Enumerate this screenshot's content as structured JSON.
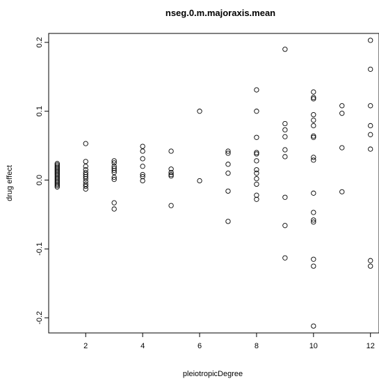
{
  "chart_data": {
    "type": "scatter",
    "title": "nseg.0.m.majoraxis.mean",
    "xlabel": "pleiotropicDegree",
    "ylabel": "drug effect",
    "xlim": [
      0.7,
      12.3
    ],
    "ylim": [
      -0.222,
      0.213
    ],
    "xticks": [
      2,
      4,
      6,
      8,
      10,
      12
    ],
    "yticks": [
      -0.2,
      -0.1,
      0.0,
      0.1,
      0.2
    ],
    "xtick_labels": [
      "2",
      "4",
      "6",
      "8",
      "10",
      "12"
    ],
    "ytick_labels": [
      "-0.2",
      "-0.1",
      "0.0",
      "0.1",
      "0.2"
    ],
    "grid": false,
    "marker": "open-circle",
    "points": [
      {
        "x": 1,
        "y": 0.024
      },
      {
        "x": 1,
        "y": 0.022
      },
      {
        "x": 1,
        "y": 0.02
      },
      {
        "x": 1,
        "y": 0.018
      },
      {
        "x": 1,
        "y": 0.016
      },
      {
        "x": 1,
        "y": 0.014
      },
      {
        "x": 1,
        "y": 0.012
      },
      {
        "x": 1,
        "y": 0.01
      },
      {
        "x": 1,
        "y": 0.008
      },
      {
        "x": 1,
        "y": 0.006
      },
      {
        "x": 1,
        "y": 0.004
      },
      {
        "x": 1,
        "y": 0.002
      },
      {
        "x": 1,
        "y": 0.0
      },
      {
        "x": 1,
        "y": -0.002
      },
      {
        "x": 1,
        "y": -0.004
      },
      {
        "x": 1,
        "y": -0.006
      },
      {
        "x": 1,
        "y": -0.008
      },
      {
        "x": 1,
        "y": -0.01
      },
      {
        "x": 2,
        "y": 0.053
      },
      {
        "x": 2,
        "y": 0.027
      },
      {
        "x": 2,
        "y": 0.02
      },
      {
        "x": 2,
        "y": 0.015
      },
      {
        "x": 2,
        "y": 0.011
      },
      {
        "x": 2,
        "y": 0.008
      },
      {
        "x": 2,
        "y": 0.005
      },
      {
        "x": 2,
        "y": 0.002
      },
      {
        "x": 2,
        "y": -0.002
      },
      {
        "x": 2,
        "y": -0.006
      },
      {
        "x": 2,
        "y": -0.009
      },
      {
        "x": 2,
        "y": -0.013
      },
      {
        "x": 3,
        "y": 0.028
      },
      {
        "x": 3,
        "y": 0.025
      },
      {
        "x": 3,
        "y": 0.02
      },
      {
        "x": 3,
        "y": 0.017
      },
      {
        "x": 3,
        "y": 0.014
      },
      {
        "x": 3,
        "y": 0.011
      },
      {
        "x": 3,
        "y": 0.004
      },
      {
        "x": 3,
        "y": 0.001
      },
      {
        "x": 3,
        "y": -0.033
      },
      {
        "x": 3,
        "y": -0.042
      },
      {
        "x": 4,
        "y": 0.049
      },
      {
        "x": 4,
        "y": 0.042
      },
      {
        "x": 4,
        "y": 0.031
      },
      {
        "x": 4,
        "y": 0.02
      },
      {
        "x": 4,
        "y": 0.008
      },
      {
        "x": 4,
        "y": 0.005
      },
      {
        "x": 4,
        "y": -0.001
      },
      {
        "x": 5,
        "y": 0.042
      },
      {
        "x": 5,
        "y": 0.016
      },
      {
        "x": 5,
        "y": 0.011
      },
      {
        "x": 5,
        "y": 0.008
      },
      {
        "x": 5,
        "y": 0.006
      },
      {
        "x": 5,
        "y": -0.037
      },
      {
        "x": 6,
        "y": 0.1
      },
      {
        "x": 6,
        "y": -0.001
      },
      {
        "x": 7,
        "y": 0.042
      },
      {
        "x": 7,
        "y": 0.039
      },
      {
        "x": 7,
        "y": 0.023
      },
      {
        "x": 7,
        "y": 0.01
      },
      {
        "x": 7,
        "y": -0.016
      },
      {
        "x": 7,
        "y": -0.06
      },
      {
        "x": 8,
        "y": 0.131
      },
      {
        "x": 8,
        "y": 0.1
      },
      {
        "x": 8,
        "y": 0.062
      },
      {
        "x": 8,
        "y": 0.04
      },
      {
        "x": 8,
        "y": 0.038
      },
      {
        "x": 8,
        "y": 0.028
      },
      {
        "x": 8,
        "y": 0.015
      },
      {
        "x": 8,
        "y": 0.01
      },
      {
        "x": 8,
        "y": 0.002
      },
      {
        "x": 8,
        "y": -0.006
      },
      {
        "x": 8,
        "y": -0.022
      },
      {
        "x": 8,
        "y": -0.028
      },
      {
        "x": 9,
        "y": 0.19
      },
      {
        "x": 9,
        "y": 0.082
      },
      {
        "x": 9,
        "y": 0.073
      },
      {
        "x": 9,
        "y": 0.063
      },
      {
        "x": 9,
        "y": 0.044
      },
      {
        "x": 9,
        "y": 0.034
      },
      {
        "x": 9,
        "y": -0.025
      },
      {
        "x": 9,
        "y": -0.066
      },
      {
        "x": 9,
        "y": -0.113
      },
      {
        "x": 10,
        "y": 0.128
      },
      {
        "x": 10,
        "y": 0.12
      },
      {
        "x": 10,
        "y": 0.118
      },
      {
        "x": 10,
        "y": 0.095
      },
      {
        "x": 10,
        "y": 0.087
      },
      {
        "x": 10,
        "y": 0.079
      },
      {
        "x": 10,
        "y": 0.064
      },
      {
        "x": 10,
        "y": 0.062
      },
      {
        "x": 10,
        "y": 0.033
      },
      {
        "x": 10,
        "y": 0.029
      },
      {
        "x": 10,
        "y": -0.019
      },
      {
        "x": 10,
        "y": -0.047
      },
      {
        "x": 10,
        "y": -0.058
      },
      {
        "x": 10,
        "y": -0.061
      },
      {
        "x": 10,
        "y": -0.115
      },
      {
        "x": 10,
        "y": -0.125
      },
      {
        "x": 10,
        "y": -0.212
      },
      {
        "x": 11,
        "y": 0.108
      },
      {
        "x": 11,
        "y": 0.097
      },
      {
        "x": 11,
        "y": 0.047
      },
      {
        "x": 11,
        "y": -0.017
      },
      {
        "x": 12,
        "y": 0.203
      },
      {
        "x": 12,
        "y": 0.161
      },
      {
        "x": 12,
        "y": 0.108
      },
      {
        "x": 12,
        "y": 0.079
      },
      {
        "x": 12,
        "y": 0.066
      },
      {
        "x": 12,
        "y": 0.045
      },
      {
        "x": 12,
        "y": -0.117
      },
      {
        "x": 12,
        "y": -0.125
      }
    ]
  }
}
